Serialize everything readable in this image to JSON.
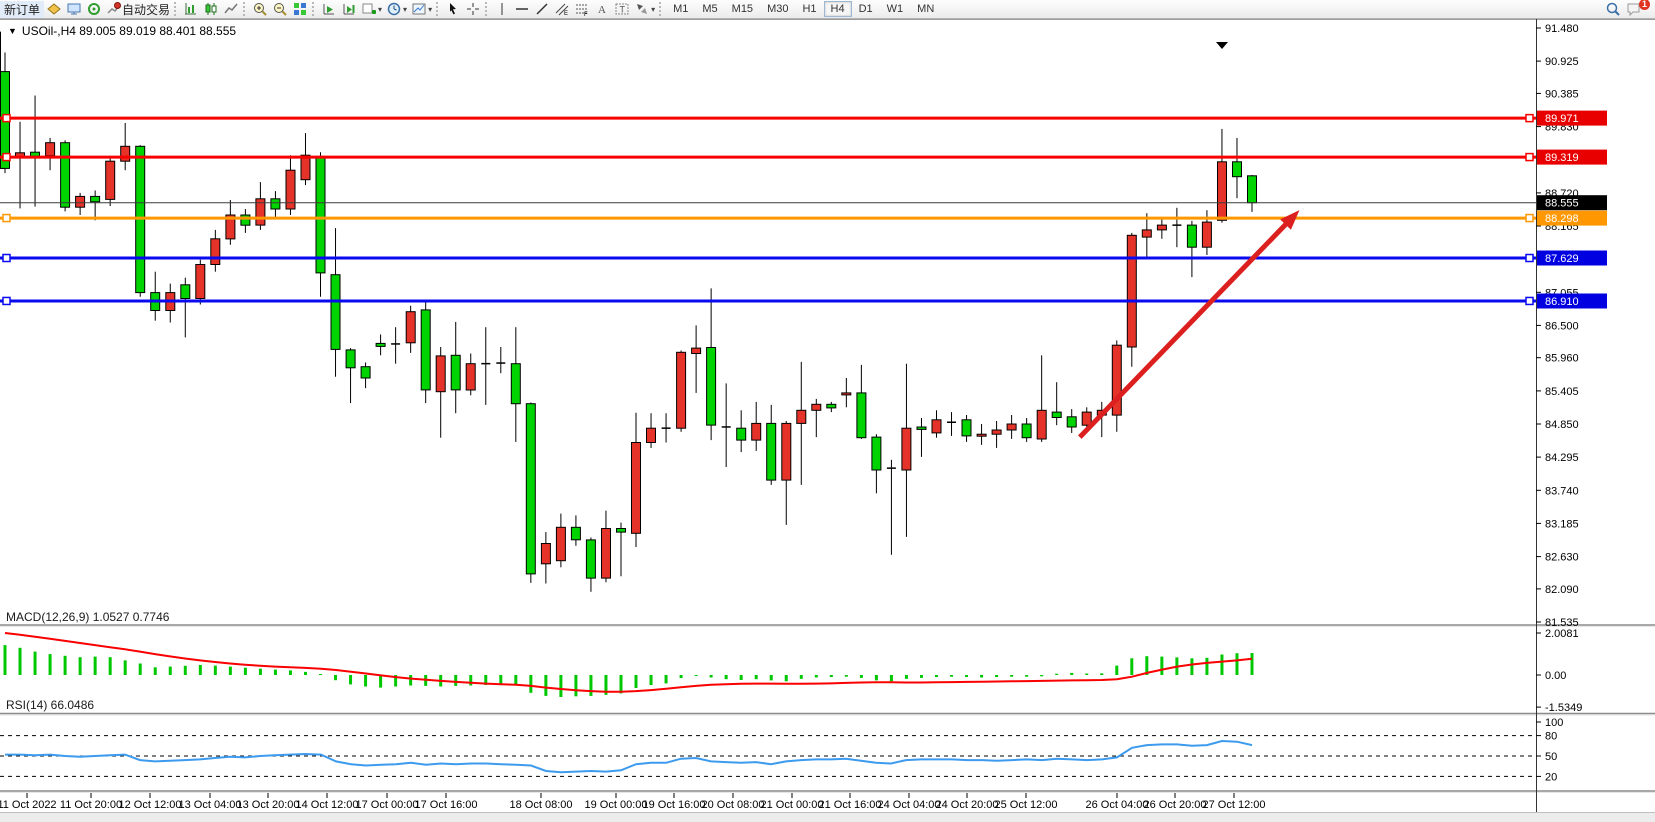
{
  "toolbar": {
    "new_order_label": "新订单",
    "autotrading_label": "自动交易",
    "timeframes": [
      "M1",
      "M5",
      "M15",
      "M30",
      "H1",
      "H4",
      "D1",
      "W1",
      "MN"
    ],
    "active_timeframe": "H4",
    "chat_badge": "1"
  },
  "chart": {
    "title_line": "USOil-,H4  89.005 89.019 88.401 88.555",
    "symbol": "USOil-",
    "timeframe": "H4"
  },
  "indicators": {
    "macd_label": "MACD(12,26,9) 1.0527 0.7746",
    "rsi_label": "RSI(14) 66.0486"
  },
  "chart_data": {
    "type": "candlestick",
    "symbol": "USOil-",
    "timeframe": "H4",
    "current_bar": {
      "open": 89.005,
      "high": 89.019,
      "low": 88.401,
      "close": 88.555
    },
    "ylim": [
      81.535,
      91.48
    ],
    "colors": {
      "up": "#e53329",
      "down": "#00d400",
      "wick": "#000000",
      "red_line": "#f80000",
      "orange_line": "#ff9800",
      "blue_line": "#0a0af0",
      "bid_line": "#3c3c3c",
      "arrow": "#dc1f1f",
      "macd_hist": "#00c800",
      "macd_signal": "#fa0000",
      "rsi_line": "#3c9bee"
    },
    "price_ticks": [
      "91.480",
      "90.925",
      "90.385",
      "89.830",
      "88.720",
      "88.165",
      "87.055",
      "86.500",
      "85.960",
      "85.405",
      "84.850",
      "84.295",
      "83.740",
      "83.185",
      "82.630",
      "82.090",
      "81.535"
    ],
    "hlines": [
      {
        "price": 89.971,
        "label": "89.971",
        "color": "#f80000",
        "width": 3,
        "label_bg": "#e80000",
        "label_fg": "#ffffff",
        "markers": true
      },
      {
        "price": 89.319,
        "label": "89.319",
        "color": "#f80000",
        "width": 3,
        "label_bg": "#e80000",
        "label_fg": "#ffffff",
        "markers": true
      },
      {
        "price": 88.555,
        "label": "88.555",
        "color": "#3c3c3c",
        "width": 1,
        "label_bg": "#000000",
        "label_fg": "#ffffff",
        "markers": false
      },
      {
        "price": 88.298,
        "label": "88.298",
        "color": "#ff9800",
        "width": 3,
        "label_bg": "#ff9800",
        "label_fg": "#ffffff",
        "markers": true
      },
      {
        "price": 87.629,
        "label": "87.629",
        "color": "#0a0af0",
        "width": 3,
        "label_bg": "#0000e0",
        "label_fg": "#ffffff",
        "markers": true
      },
      {
        "price": 86.91,
        "label": "86.910",
        "color": "#0a0af0",
        "width": 3,
        "label_bg": "#0000e0",
        "label_fg": "#ffffff",
        "markers": true
      }
    ],
    "edge_candle": [
      90.74,
      91.42,
      89.13,
      89.13
    ],
    "candles": [
      [
        90.75,
        91.07,
        89.05,
        89.13
      ],
      [
        89.31,
        89.91,
        88.46,
        89.39
      ],
      [
        89.4,
        90.35,
        88.49,
        89.33
      ],
      [
        89.34,
        89.64,
        89.1,
        89.56
      ],
      [
        89.56,
        89.6,
        88.41,
        88.48
      ],
      [
        88.48,
        88.72,
        88.35,
        88.66
      ],
      [
        88.66,
        88.76,
        88.26,
        88.57
      ],
      [
        88.61,
        89.3,
        88.5,
        89.25
      ],
      [
        89.25,
        89.89,
        89.1,
        89.5
      ],
      [
        89.5,
        89.52,
        86.98,
        87.05
      ],
      [
        87.05,
        87.4,
        86.58,
        86.75
      ],
      [
        86.75,
        87.2,
        86.55,
        87.05
      ],
      [
        87.18,
        87.3,
        86.3,
        86.95
      ],
      [
        86.95,
        87.6,
        86.85,
        87.52
      ],
      [
        87.52,
        88.1,
        87.4,
        87.95
      ],
      [
        87.95,
        88.6,
        87.85,
        88.35
      ],
      [
        88.35,
        88.45,
        88.05,
        88.18
      ],
      [
        88.18,
        88.9,
        88.1,
        88.62
      ],
      [
        88.62,
        88.75,
        88.3,
        88.45
      ],
      [
        88.45,
        89.35,
        88.35,
        89.1
      ],
      [
        88.94,
        89.72,
        88.85,
        89.35
      ],
      [
        89.33,
        89.4,
        86.98,
        87.38
      ],
      [
        87.35,
        88.13,
        85.64,
        86.1
      ],
      [
        86.09,
        86.12,
        85.2,
        85.79
      ],
      [
        85.81,
        85.88,
        85.45,
        85.62
      ],
      [
        86.2,
        86.35,
        86.0,
        86.15
      ],
      [
        86.19,
        86.47,
        85.86,
        86.19
      ],
      [
        86.21,
        86.83,
        86.04,
        86.73
      ],
      [
        86.76,
        86.93,
        85.2,
        85.42
      ],
      [
        85.39,
        86.14,
        84.62,
        85.99
      ],
      [
        86.0,
        86.56,
        85.03,
        85.42
      ],
      [
        85.42,
        86.03,
        85.33,
        85.86
      ],
      [
        85.86,
        86.47,
        85.17,
        85.86
      ],
      [
        85.87,
        86.14,
        85.7,
        85.87
      ],
      [
        85.86,
        86.47,
        84.55,
        85.19
      ],
      [
        85.19,
        85.21,
        82.19,
        82.34
      ],
      [
        82.51,
        83.04,
        82.18,
        82.85
      ],
      [
        82.56,
        83.35,
        82.45,
        83.12
      ],
      [
        83.12,
        83.32,
        82.81,
        82.91
      ],
      [
        82.91,
        82.95,
        82.04,
        82.27
      ],
      [
        82.27,
        83.4,
        82.2,
        83.1
      ],
      [
        83.1,
        83.2,
        82.3,
        83.04
      ],
      [
        83.02,
        85.04,
        82.79,
        84.54
      ],
      [
        84.54,
        85.03,
        84.45,
        84.78
      ],
      [
        84.78,
        85.03,
        84.54,
        84.78
      ],
      [
        84.78,
        86.08,
        84.72,
        86.05
      ],
      [
        86.03,
        86.5,
        85.37,
        86.12
      ],
      [
        86.13,
        87.12,
        84.58,
        84.83
      ],
      [
        84.8,
        85.53,
        84.13,
        84.8
      ],
      [
        84.78,
        85.08,
        84.38,
        84.58
      ],
      [
        84.58,
        85.22,
        84.4,
        84.86
      ],
      [
        84.86,
        85.17,
        83.83,
        83.91
      ],
      [
        83.91,
        84.9,
        83.16,
        84.86
      ],
      [
        84.86,
        85.89,
        83.83,
        85.08
      ],
      [
        85.08,
        85.27,
        84.63,
        85.18
      ],
      [
        85.18,
        85.22,
        85.05,
        85.12
      ],
      [
        85.35,
        85.62,
        85.13,
        85.37
      ],
      [
        85.37,
        85.84,
        84.6,
        84.62
      ],
      [
        84.63,
        84.68,
        83.69,
        84.08
      ],
      [
        84.11,
        84.25,
        82.66,
        84.11
      ],
      [
        84.08,
        85.86,
        82.96,
        84.78
      ],
      [
        84.8,
        84.95,
        84.3,
        84.76
      ],
      [
        84.7,
        85.08,
        84.62,
        84.92
      ],
      [
        84.88,
        85.05,
        84.65,
        84.88
      ],
      [
        84.92,
        85.0,
        84.55,
        84.65
      ],
      [
        84.65,
        84.85,
        84.5,
        84.68
      ],
      [
        84.68,
        84.9,
        84.45,
        84.75
      ],
      [
        84.75,
        85.0,
        84.6,
        84.85
      ],
      [
        84.85,
        84.95,
        84.55,
        84.62
      ],
      [
        84.6,
        86.0,
        84.55,
        85.08
      ],
      [
        85.05,
        85.55,
        84.83,
        84.96
      ],
      [
        84.97,
        85.1,
        84.7,
        84.8
      ],
      [
        84.83,
        85.13,
        84.72,
        85.05
      ],
      [
        85.0,
        85.22,
        84.63,
        85.08
      ],
      [
        85.0,
        86.25,
        84.72,
        86.17
      ],
      [
        86.14,
        88.05,
        85.81,
        88.01
      ],
      [
        87.98,
        88.38,
        87.63,
        88.1
      ],
      [
        88.1,
        88.3,
        87.95,
        88.18
      ],
      [
        88.18,
        88.47,
        87.81,
        88.18
      ],
      [
        88.18,
        88.25,
        87.31,
        87.81
      ],
      [
        87.81,
        88.43,
        87.68,
        88.23
      ],
      [
        88.26,
        89.79,
        88.22,
        89.24
      ],
      [
        89.24,
        89.64,
        88.63,
        88.99
      ],
      [
        89.005,
        89.019,
        88.401,
        88.555
      ]
    ],
    "time_labels": [
      {
        "t": "11 Oct 2022",
        "pos": 0.0176
      },
      {
        "t": "11 Oct 20:00",
        "pos": 0.0592
      },
      {
        "t": "12 Oct 12:00",
        "pos": 0.0977
      },
      {
        "t": "13 Oct 04:00",
        "pos": 0.1367
      },
      {
        "t": "13 Oct 20:00",
        "pos": 0.1745
      },
      {
        "t": "14 Oct 12:00",
        "pos": 0.2129
      },
      {
        "t": "17 Oct 00:00",
        "pos": 0.2519
      },
      {
        "t": "17 Oct 16:00",
        "pos": 0.2904
      },
      {
        "t": "18 Oct 08:00",
        "pos": 0.3522
      },
      {
        "t": "19 Oct 00:00",
        "pos": 0.401
      },
      {
        "t": "19 Oct 16:00",
        "pos": 0.4388
      },
      {
        "t": "20 Oct 08:00",
        "pos": 0.4772
      },
      {
        "t": "21 Oct 00:00",
        "pos": 0.5156
      },
      {
        "t": "21 Oct 16:00",
        "pos": 0.5534
      },
      {
        "t": "24 Oct 04:00",
        "pos": 0.5917
      },
      {
        "t": "24 Oct 20:00",
        "pos": 0.6295
      },
      {
        "t": "25 Oct 12:00",
        "pos": 0.668
      },
      {
        "t": "26 Oct 04:00",
        "pos": 0.7272
      },
      {
        "t": "26 Oct 20:00",
        "pos": 0.765
      },
      {
        "t": "27 Oct 12:00",
        "pos": 0.8034
      }
    ],
    "arrow": {
      "from": {
        "pos": 0.703,
        "price": 84.63
      },
      "to": {
        "pos": 0.846,
        "price": 88.43
      }
    },
    "macd": {
      "params": "12,26,9",
      "value": 1.0527,
      "signal_value": 0.7746,
      "ticks": [
        "2.0081",
        "0.00",
        "-1.5349"
      ],
      "range": [
        -1.5349,
        2.0081
      ],
      "hist": [
        1.43,
        1.3,
        1.12,
        1.0,
        0.92,
        0.85,
        0.88,
        0.85,
        0.7,
        0.55,
        0.37,
        0.4,
        0.44,
        0.48,
        0.45,
        0.4,
        0.35,
        0.3,
        0.26,
        0.22,
        0.15,
        0.05,
        -0.25,
        -0.45,
        -0.55,
        -0.6,
        -0.55,
        -0.5,
        -0.52,
        -0.55,
        -0.52,
        -0.5,
        -0.48,
        -0.46,
        -0.5,
        -0.85,
        -1.0,
        -1.05,
        -1.02,
        -1.0,
        -0.95,
        -0.88,
        -0.62,
        -0.48,
        -0.4,
        -0.15,
        -0.05,
        -0.12,
        -0.2,
        -0.24,
        -0.2,
        -0.26,
        -0.3,
        -0.18,
        -0.12,
        -0.1,
        -0.08,
        -0.14,
        -0.26,
        -0.3,
        -0.18,
        -0.14,
        -0.1,
        -0.08,
        -0.1,
        -0.12,
        -0.1,
        -0.08,
        -0.08,
        -0.06,
        0.06,
        0.1,
        0.07,
        0.08,
        0.45,
        0.8,
        0.9,
        0.88,
        0.84,
        0.8,
        0.82,
        0.98,
        1.04,
        1.0527
      ],
      "signal": [
        2.01,
        1.92,
        1.83,
        1.73,
        1.63,
        1.53,
        1.43,
        1.33,
        1.23,
        1.12,
        1.0,
        0.89,
        0.79,
        0.7,
        0.62,
        0.55,
        0.49,
        0.44,
        0.4,
        0.37,
        0.34,
        0.3,
        0.24,
        0.16,
        0.07,
        -0.02,
        -0.1,
        -0.17,
        -0.23,
        -0.28,
        -0.33,
        -0.37,
        -0.41,
        -0.44,
        -0.47,
        -0.52,
        -0.6,
        -0.67,
        -0.73,
        -0.77,
        -0.8,
        -0.8,
        -0.77,
        -0.72,
        -0.66,
        -0.59,
        -0.52,
        -0.47,
        -0.44,
        -0.42,
        -0.41,
        -0.41,
        -0.42,
        -0.42,
        -0.41,
        -0.4,
        -0.38,
        -0.36,
        -0.35,
        -0.35,
        -0.36,
        -0.36,
        -0.35,
        -0.34,
        -0.33,
        -0.32,
        -0.31,
        -0.3,
        -0.29,
        -0.28,
        -0.27,
        -0.26,
        -0.25,
        -0.24,
        -0.2,
        -0.08,
        0.1,
        0.26,
        0.4,
        0.5,
        0.58,
        0.64,
        0.7,
        0.7746
      ]
    },
    "rsi": {
      "period": 14,
      "value": 66.0486,
      "levels": [
        80,
        50,
        20
      ],
      "ticks": [
        "100",
        "80",
        "50",
        "20"
      ],
      "range": [
        0,
        100
      ],
      "values": [
        52,
        52,
        51,
        52,
        50,
        49,
        50,
        51,
        52,
        44,
        42,
        43,
        44,
        45,
        47,
        49,
        48,
        50,
        51,
        52,
        53,
        52,
        42,
        38,
        36,
        37,
        38,
        40,
        37,
        39,
        38,
        39,
        39,
        38,
        37,
        36,
        28,
        26,
        27,
        28,
        27,
        29,
        38,
        40,
        40,
        46,
        47,
        42,
        41,
        40,
        41,
        38,
        42,
        44,
        45,
        45,
        46,
        43,
        40,
        39,
        44,
        45,
        45,
        45,
        44,
        44,
        43,
        44,
        45,
        44,
        46,
        45,
        44,
        45,
        48,
        62,
        66,
        67,
        67,
        65,
        66,
        72,
        71,
        66.05
      ]
    }
  }
}
